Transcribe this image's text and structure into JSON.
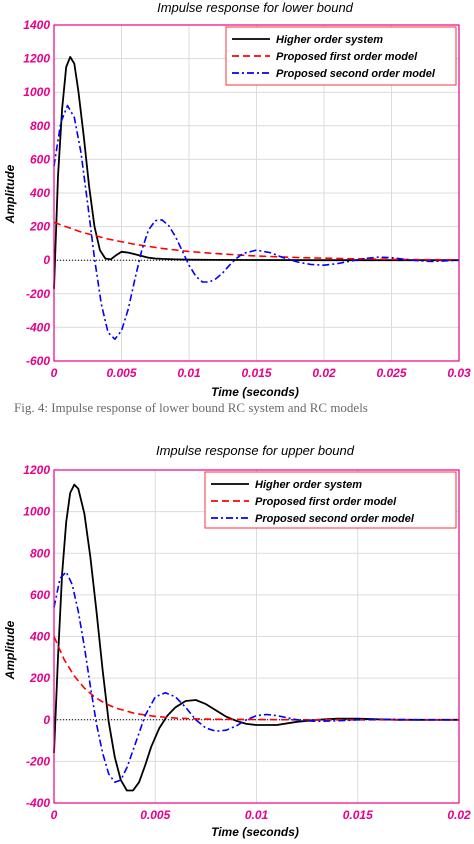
{
  "caption_fragment": "Fig. 4: Impulse response of lower bound RC system and RC models",
  "chart_data": [
    {
      "type": "line",
      "title": "Impulse response for lower bound",
      "xlabel": "Time (seconds)",
      "ylabel": "Amplitude",
      "xlim": [
        0,
        0.03
      ],
      "ylim": [
        -600,
        1400
      ],
      "xticks": [
        "0",
        "0.005",
        "0.01",
        "0.015",
        "0.02",
        "0.025",
        "0.03"
      ],
      "yticks": [
        "-600",
        "-400",
        "-200",
        "0",
        "200",
        "400",
        "600",
        "800",
        "1000",
        "1200",
        "1400"
      ],
      "grid": true,
      "legend_position": "top-right",
      "series": [
        {
          "name": "Higher order system",
          "color": "#000000",
          "style": "solid",
          "x": [
            0,
            0.0003,
            0.0006,
            0.0009,
            0.0012,
            0.0015,
            0.0018,
            0.0022,
            0.0026,
            0.003,
            0.0034,
            0.0038,
            0.0042,
            0.0046,
            0.005,
            0.0055,
            0.006,
            0.0065,
            0.007,
            0.0075,
            0.008,
            0.009,
            0.01,
            0.012,
            0.015,
            0.02,
            0.025,
            0.03
          ],
          "y": [
            -170,
            500,
            900,
            1150,
            1210,
            1170,
            1010,
            740,
            440,
            200,
            60,
            10,
            5,
            30,
            50,
            45,
            35,
            25,
            15,
            10,
            8,
            5,
            3,
            2,
            1,
            0,
            0,
            0
          ]
        },
        {
          "name": "Proposed first order model",
          "color": "#ff0000",
          "style": "dashed",
          "x": [
            0,
            0.002,
            0.004,
            0.006,
            0.008,
            0.01,
            0.012,
            0.015,
            0.018,
            0.02,
            0.025,
            0.03
          ],
          "y": [
            225,
            168,
            126,
            94,
            70,
            52,
            39,
            25,
            16,
            12,
            5,
            2
          ]
        },
        {
          "name": "Proposed second order model",
          "color": "#0000ff",
          "style": "dashdot",
          "x": [
            0,
            0.0005,
            0.001,
            0.0015,
            0.002,
            0.0025,
            0.003,
            0.0035,
            0.004,
            0.0045,
            0.005,
            0.0055,
            0.006,
            0.0065,
            0.007,
            0.0075,
            0.008,
            0.0085,
            0.009,
            0.0095,
            0.01,
            0.0105,
            0.011,
            0.0115,
            0.012,
            0.0125,
            0.013,
            0.0135,
            0.014,
            0.015,
            0.016,
            0.017,
            0.018,
            0.019,
            0.02,
            0.021,
            0.022,
            0.023,
            0.024,
            0.025,
            0.026,
            0.027,
            0.028,
            0.03
          ],
          "y": [
            560,
            820,
            920,
            850,
            640,
            330,
            10,
            -260,
            -430,
            -470,
            -420,
            -290,
            -110,
            60,
            180,
            235,
            240,
            205,
            140,
            55,
            -30,
            -95,
            -130,
            -130,
            -110,
            -75,
            -30,
            10,
            40,
            60,
            45,
            15,
            -10,
            -25,
            -30,
            -20,
            -5,
            10,
            18,
            15,
            5,
            -3,
            -8,
            0
          ]
        }
      ]
    },
    {
      "type": "line",
      "title": "Impulse response for upper bound",
      "xlabel": "Time (seconds)",
      "ylabel": "Amplitude",
      "xlim": [
        0,
        0.02
      ],
      "ylim": [
        -400,
        1200
      ],
      "xticks": [
        "0",
        "0.005",
        "0.01",
        "0.015",
        "0.02"
      ],
      "yticks": [
        "-400",
        "-200",
        "0",
        "200",
        "400",
        "600",
        "800",
        "1000",
        "1200"
      ],
      "grid": true,
      "legend_position": "top-right",
      "series": [
        {
          "name": "Higher order system",
          "color": "#000000",
          "style": "solid",
          "x": [
            0,
            0.0002,
            0.0004,
            0.0006,
            0.0008,
            0.001,
            0.0012,
            0.0015,
            0.0018,
            0.0021,
            0.0024,
            0.0027,
            0.003,
            0.0033,
            0.0036,
            0.0039,
            0.0042,
            0.0045,
            0.0048,
            0.0052,
            0.0056,
            0.006,
            0.0065,
            0.007,
            0.0075,
            0.008,
            0.0085,
            0.009,
            0.0095,
            0.01,
            0.011,
            0.012,
            0.013,
            0.014,
            0.015,
            0.016,
            0.017,
            0.018,
            0.02
          ],
          "y": [
            -160,
            300,
            700,
            950,
            1090,
            1130,
            1110,
            990,
            780,
            520,
            240,
            -10,
            -180,
            -290,
            -340,
            -340,
            -300,
            -220,
            -130,
            -40,
            20,
            60,
            90,
            95,
            75,
            45,
            15,
            -5,
            -20,
            -25,
            -25,
            -10,
            0,
            5,
            5,
            2,
            0,
            0,
            0
          ]
        },
        {
          "name": "Proposed first order model",
          "color": "#ff0000",
          "style": "dashed",
          "x": [
            0,
            0.0005,
            0.001,
            0.0015,
            0.002,
            0.0025,
            0.003,
            0.004,
            0.005,
            0.006,
            0.007,
            0.008,
            0.01,
            0.012,
            0.015,
            0.02
          ],
          "y": [
            400,
            290,
            210,
            152,
            110,
            80,
            58,
            30,
            16,
            8,
            4,
            2,
            1,
            0,
            0,
            0
          ]
        },
        {
          "name": "Proposed second order model",
          "color": "#0000ff",
          "style": "dashdot",
          "x": [
            0,
            0.0003,
            0.0006,
            0.0009,
            0.0012,
            0.0015,
            0.0018,
            0.0021,
            0.0024,
            0.0027,
            0.003,
            0.0033,
            0.0036,
            0.004,
            0.0045,
            0.005,
            0.0055,
            0.006,
            0.0065,
            0.007,
            0.0075,
            0.008,
            0.0085,
            0.009,
            0.0095,
            0.01,
            0.0105,
            0.011,
            0.0115,
            0.012,
            0.0125,
            0.013,
            0.014,
            0.015,
            0.016,
            0.017,
            0.018,
            0.02
          ],
          "y": [
            540,
            680,
            710,
            650,
            520,
            350,
            160,
            -20,
            -160,
            -260,
            -300,
            -290,
            -230,
            -120,
            20,
            110,
            130,
            110,
            60,
            0,
            -40,
            -55,
            -50,
            -30,
            0,
            20,
            25,
            20,
            10,
            0,
            -5,
            -8,
            -5,
            0,
            2,
            1,
            0,
            0
          ]
        }
      ]
    }
  ]
}
